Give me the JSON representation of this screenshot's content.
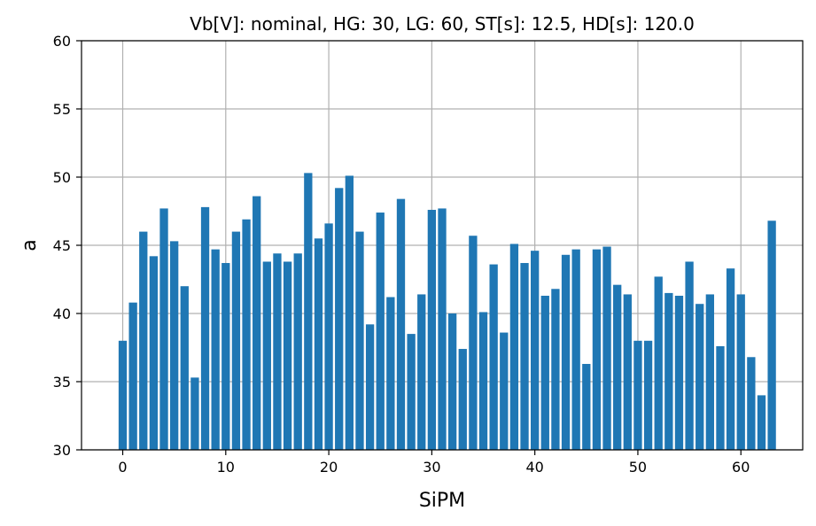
{
  "chart_data": {
    "type": "bar",
    "title": "Vb[V]: nominal, HG: 30, LG: 60, ST[s]: 12.5, HD[s]: 120.0",
    "xlabel": "SiPM",
    "ylabel": "a",
    "xlim": [
      -4,
      66
    ],
    "ylim": [
      30,
      60
    ],
    "xticks": [
      0,
      10,
      20,
      30,
      40,
      50,
      60
    ],
    "yticks": [
      30,
      35,
      40,
      45,
      50,
      55,
      60
    ],
    "grid": true,
    "bar_color": "#1f77b4",
    "x": [
      0,
      1,
      2,
      3,
      4,
      5,
      6,
      7,
      8,
      9,
      10,
      11,
      12,
      13,
      14,
      15,
      16,
      17,
      18,
      19,
      20,
      21,
      22,
      23,
      24,
      25,
      26,
      27,
      28,
      29,
      30,
      31,
      32,
      33,
      34,
      35,
      36,
      37,
      38,
      39,
      40,
      41,
      42,
      43,
      44,
      45,
      46,
      47,
      48,
      49,
      50,
      51,
      52,
      53,
      54,
      55,
      56,
      57,
      58,
      59,
      60,
      61,
      62,
      63
    ],
    "values": [
      38.0,
      40.8,
      46.0,
      44.2,
      47.7,
      45.3,
      42.0,
      35.3,
      47.8,
      44.7,
      43.7,
      46.0,
      46.9,
      48.6,
      43.8,
      44.4,
      43.8,
      44.4,
      50.3,
      45.5,
      46.6,
      49.2,
      50.1,
      46.0,
      39.2,
      47.4,
      41.2,
      48.4,
      38.5,
      41.4,
      47.6,
      47.7,
      40.0,
      37.4,
      45.7,
      40.1,
      43.6,
      38.6,
      45.1,
      43.7,
      44.6,
      41.3,
      41.8,
      44.3,
      44.7,
      36.3,
      44.7,
      44.9,
      42.1,
      41.4,
      38.0,
      38.0,
      42.7,
      41.5,
      41.3,
      43.8,
      40.7,
      41.4,
      37.6,
      43.3,
      41.4,
      36.8,
      34.0,
      46.8
    ]
  }
}
